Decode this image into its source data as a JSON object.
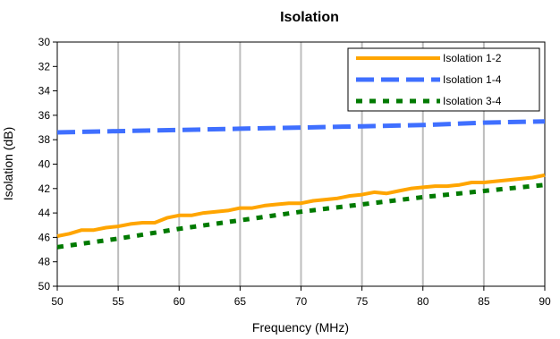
{
  "chart_data": {
    "type": "line",
    "title": "Isolation",
    "xlabel": "Frequency (MHz)",
    "ylabel": "Isolation (dB)",
    "xlim": [
      50,
      90
    ],
    "ylim": [
      30,
      50
    ],
    "y_inverted": true,
    "x_ticks": [
      50,
      55,
      60,
      65,
      70,
      75,
      80,
      85,
      90
    ],
    "y_ticks": [
      30,
      32,
      34,
      36,
      38,
      40,
      42,
      44,
      46,
      48,
      50
    ],
    "grid": "vertical",
    "legend_position": "top-right",
    "series": [
      {
        "name": "Isolation 1-2",
        "color": "#FFA500",
        "style": "solid",
        "x": [
          50,
          51,
          52,
          53,
          54,
          55,
          56,
          57,
          58,
          59,
          60,
          61,
          62,
          63,
          64,
          65,
          66,
          67,
          68,
          69,
          70,
          71,
          72,
          73,
          74,
          75,
          76,
          77,
          78,
          79,
          80,
          81,
          82,
          83,
          84,
          85,
          86,
          87,
          88,
          89,
          90
        ],
        "y": [
          45.9,
          45.7,
          45.4,
          45.4,
          45.2,
          45.1,
          44.9,
          44.8,
          44.8,
          44.4,
          44.2,
          44.2,
          44.0,
          43.9,
          43.8,
          43.6,
          43.6,
          43.4,
          43.3,
          43.2,
          43.2,
          43.0,
          42.9,
          42.8,
          42.6,
          42.5,
          42.3,
          42.4,
          42.2,
          42.0,
          41.9,
          41.8,
          41.8,
          41.7,
          41.5,
          41.5,
          41.4,
          41.3,
          41.2,
          41.1,
          40.9
        ]
      },
      {
        "name": "Isolation 1-4",
        "color": "#3F6FFF",
        "style": "dashed",
        "x": [
          50,
          55,
          60,
          65,
          70,
          75,
          80,
          85,
          90
        ],
        "y": [
          37.4,
          37.3,
          37.2,
          37.1,
          37.0,
          36.9,
          36.8,
          36.6,
          36.5
        ]
      },
      {
        "name": "Isolation 3-4",
        "color": "#007A00",
        "style": "dotted",
        "x": [
          50,
          55,
          60,
          65,
          70,
          75,
          80,
          85,
          90
        ],
        "y": [
          46.8,
          46.1,
          45.3,
          44.6,
          43.9,
          43.3,
          42.7,
          42.2,
          41.7
        ]
      }
    ]
  }
}
